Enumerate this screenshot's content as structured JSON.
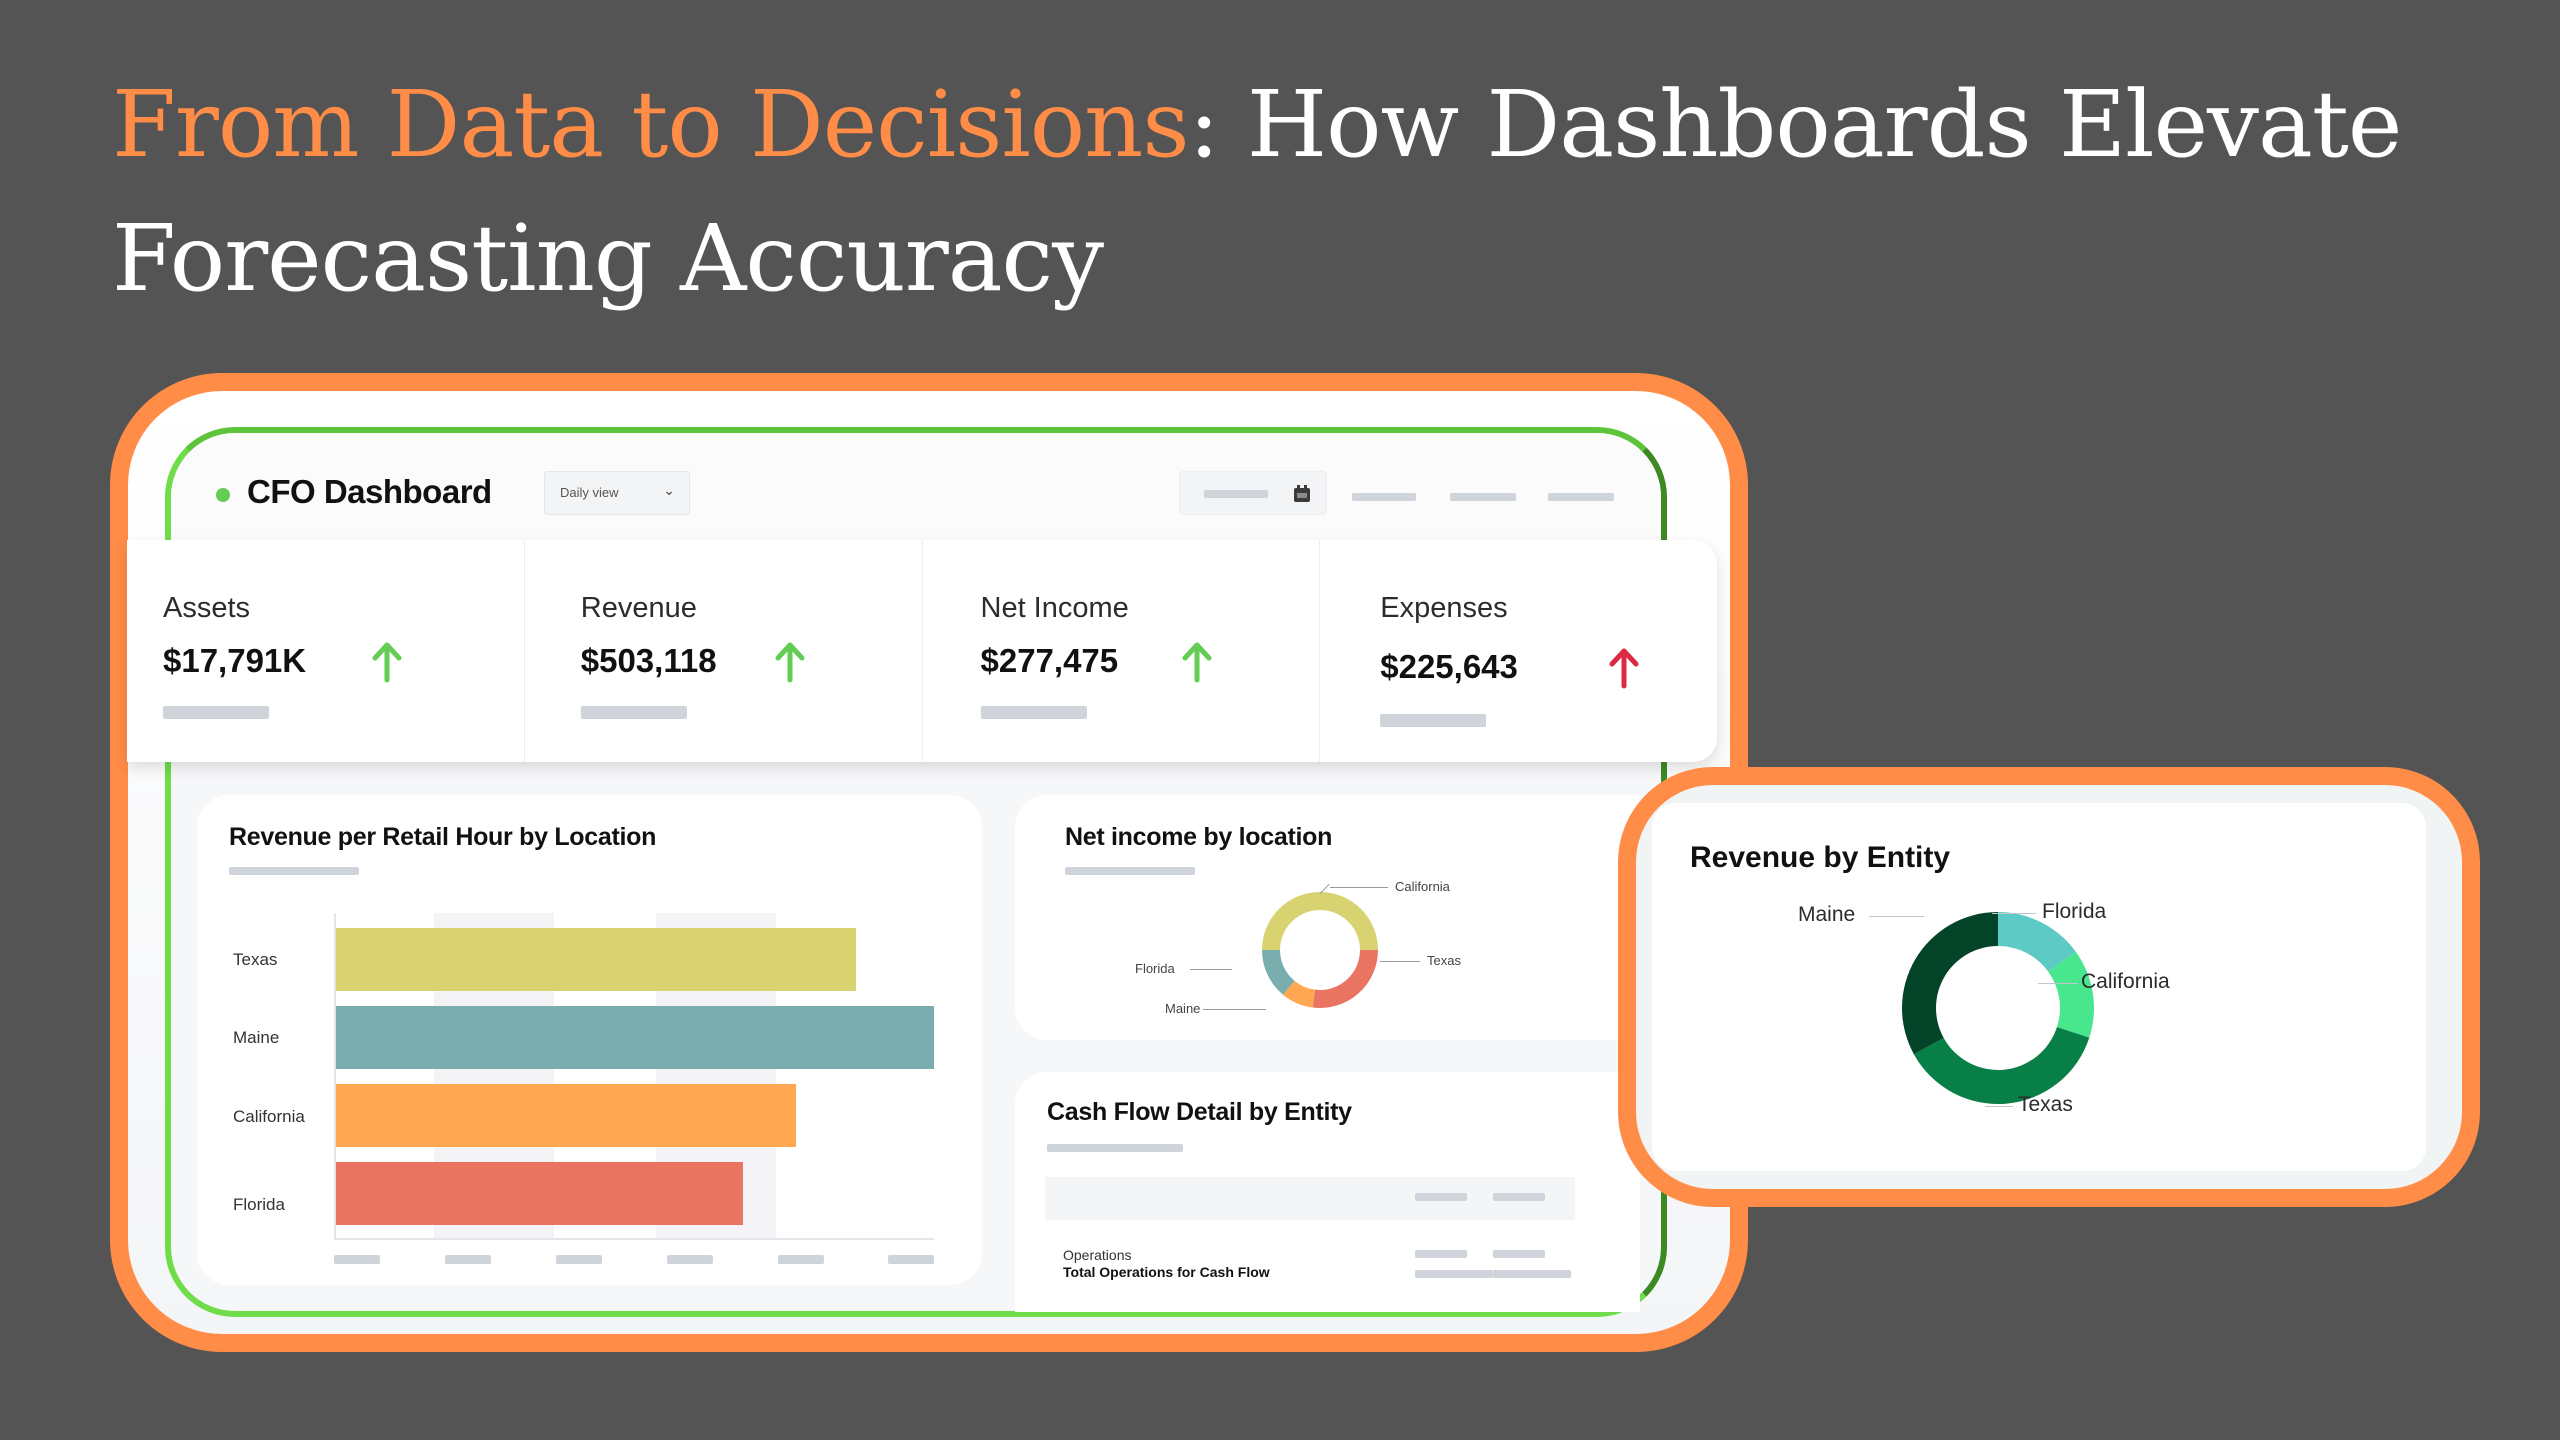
{
  "title": {
    "accent": "From Data to Decisions",
    "rest_line1": ": How Dashboards Elevate",
    "line2": "Forecasting Accuracy"
  },
  "colors": {
    "background": "#545454",
    "accent_orange": "#ff8c47",
    "frame_green": "#6fdc4a",
    "up_green": "#62cc55",
    "up_red": "#dc2a44"
  },
  "dashboard": {
    "title": "CFO Dashboard",
    "view_select": {
      "selected": "Daily view",
      "icon": "chevron-down-icon"
    },
    "date_picker": {
      "icon": "calendar-icon"
    },
    "kpis": [
      {
        "label": "Assets",
        "value": "$17,791K",
        "trend": "up",
        "trend_color": "#62cc55"
      },
      {
        "label": "Revenue",
        "value": "$503,118",
        "trend": "up",
        "trend_color": "#62cc55"
      },
      {
        "label": "Net Income",
        "value": "$277,475",
        "trend": "up",
        "trend_color": "#62cc55"
      },
      {
        "label": "Expenses",
        "value": "$225,643",
        "trend": "up",
        "trend_color": "#dc2a44"
      }
    ],
    "cash_flow": {
      "title": "Cash Flow Detail by Entity",
      "rows": [
        {
          "label": "Operations",
          "bold": false
        },
        {
          "label": "Total Operations for Cash Flow",
          "bold": true
        }
      ]
    }
  },
  "chart_data": [
    {
      "type": "bar",
      "orientation": "horizontal",
      "title": "Revenue per Retail Hour by Location",
      "categories": [
        "Texas",
        "Maine",
        "California",
        "Florida"
      ],
      "values": [
        0.87,
        1.0,
        0.77,
        0.68
      ],
      "colors": [
        "#d8d370",
        "#7aaeae",
        "#ffa751",
        "#e97462"
      ],
      "xlabel": "",
      "ylabel": "",
      "value_scale": "relative (tick labels not shown)",
      "grid": "alternating vertical bands"
    },
    {
      "type": "pie",
      "variant": "donut",
      "title": "Net income by location",
      "categories": [
        "California",
        "Texas",
        "Maine",
        "Florida"
      ],
      "values": [
        50,
        27,
        9,
        14
      ],
      "colors": [
        "#d8d370",
        "#e97462",
        "#ffa751",
        "#7aaeae"
      ]
    },
    {
      "type": "pie",
      "variant": "donut",
      "title": "Revenue by Entity",
      "categories": [
        "Florida",
        "California",
        "Texas",
        "Maine"
      ],
      "values": [
        15,
        15,
        37,
        33
      ],
      "colors": [
        "#5ecac6",
        "#48e68d",
        "#087f46",
        "#034428"
      ]
    }
  ]
}
